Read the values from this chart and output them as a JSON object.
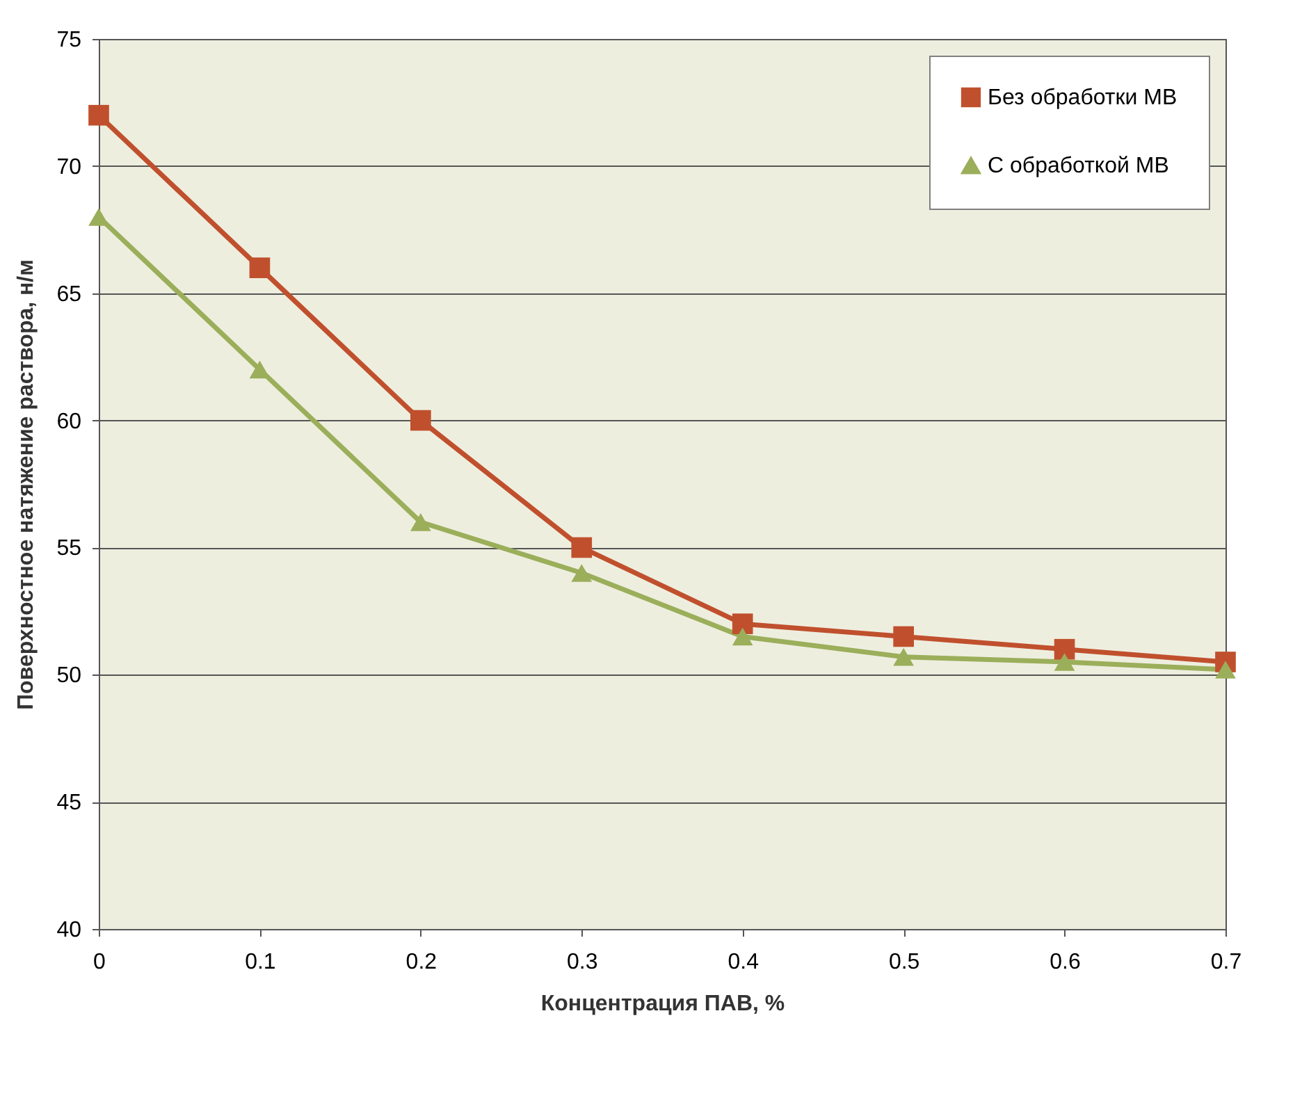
{
  "chart_data": {
    "type": "line",
    "xlabel": "Концентрация ПАВ, %",
    "ylabel": "Поверхностное натяжение раствора, н/м",
    "x": [
      0,
      0.1,
      0.2,
      0.3,
      0.4,
      0.5,
      0.6,
      0.7
    ],
    "series": [
      {
        "name": "Без обработки МВ",
        "color": "#c0502d",
        "marker": "square",
        "values": [
          72,
          66,
          60,
          55,
          52,
          51.5,
          51,
          50.5
        ]
      },
      {
        "name": "С обработкой МВ",
        "color": "#9bae5a",
        "marker": "triangle",
        "values": [
          68,
          62,
          56,
          54,
          51.5,
          50.7,
          50.5,
          50.2
        ]
      }
    ],
    "xlim": [
      0,
      0.7
    ],
    "xticks": [
      0,
      0.1,
      0.2,
      0.3,
      0.4,
      0.5,
      0.6,
      0.7
    ],
    "ylim": [
      40,
      75
    ],
    "yticks": [
      40,
      45,
      50,
      55,
      60,
      65,
      70,
      75
    ],
    "grid": "y",
    "legend": "top right",
    "line_style": "solid"
  }
}
